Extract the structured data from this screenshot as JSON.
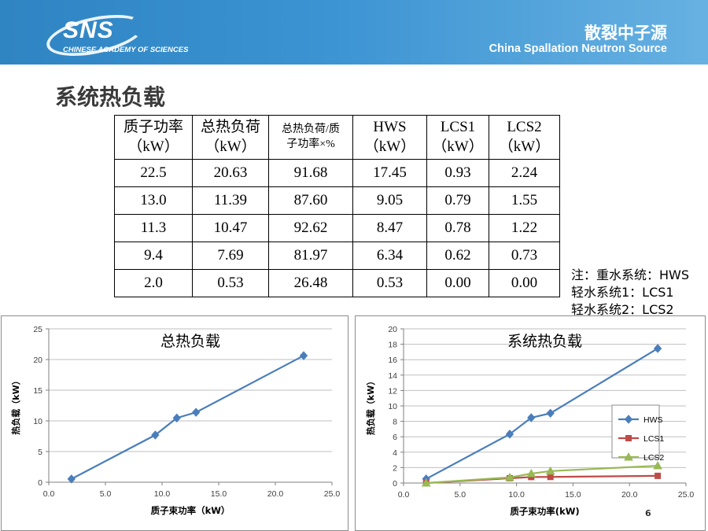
{
  "header": {
    "logo_text": "SNS",
    "logo_subtext": "CHINESE ACADEMY OF SCIENCES",
    "org_cn": "散裂中子源",
    "org_en": "China Spallation Neutron Source"
  },
  "slide_title": "系统热负载",
  "table": {
    "headers": [
      [
        "质子功率",
        "（kW）"
      ],
      [
        "总热负荷",
        "（kW）"
      ],
      [
        "总热负荷/质",
        "子功率×%"
      ],
      [
        "HWS",
        "（kW）"
      ],
      [
        "LCS1",
        "（kW）"
      ],
      [
        "LCS2",
        "（kW）"
      ]
    ],
    "rows": [
      [
        "22.5",
        "20.63",
        "91.68",
        "17.45",
        "0.93",
        "2.24"
      ],
      [
        "13.0",
        "11.39",
        "87.60",
        "9.05",
        "0.79",
        "1.55"
      ],
      [
        "11.3",
        "10.47",
        "92.62",
        "8.47",
        "0.78",
        "1.22"
      ],
      [
        "9.4",
        "7.69",
        "81.97",
        "6.34",
        "0.62",
        "0.73"
      ],
      [
        "2.0",
        "0.53",
        "26.48",
        "0.53",
        "0.00",
        "0.00"
      ]
    ]
  },
  "note": {
    "line1": "注：重水系统：HWS",
    "line2": "轻水系统1：LCS1",
    "line3": "轻水系统2：LCS2"
  },
  "page_number": "6",
  "chart_data": [
    {
      "type": "line",
      "title": "总热负载",
      "xlabel": "质子束功率（kW）",
      "ylabel": "热负载（kW）",
      "xlim": [
        0,
        25
      ],
      "ylim": [
        0,
        25
      ],
      "xticks": [
        "0.0",
        "5.0",
        "10.0",
        "15.0",
        "20.0",
        "25.0"
      ],
      "yticks": [
        "0",
        "5",
        "10",
        "15",
        "20",
        "25"
      ],
      "grid": "horizontal",
      "legend": "none",
      "series": [
        {
          "name": "",
          "color": "#4a7ebb",
          "marker": "diamond",
          "x": [
            2.0,
            9.4,
            11.3,
            13.0,
            22.5
          ],
          "y": [
            0.53,
            7.69,
            10.47,
            11.39,
            20.63
          ]
        }
      ]
    },
    {
      "type": "line",
      "title": "系统热负载",
      "xlabel": "质子束功率(kW)",
      "ylabel": "热负载（kW）",
      "xlim": [
        0,
        25
      ],
      "ylim": [
        0,
        20
      ],
      "xticks": [
        "0.0",
        "5.0",
        "10.0",
        "15.0",
        "20.0",
        "25.0"
      ],
      "yticks": [
        "0",
        "2",
        "4",
        "6",
        "8",
        "10",
        "12",
        "14",
        "16",
        "18",
        "20"
      ],
      "grid": "horizontal",
      "legend": "right",
      "series": [
        {
          "name": "HWS",
          "color": "#4a7ebb",
          "marker": "diamond",
          "x": [
            2.0,
            9.4,
            11.3,
            13.0,
            22.5
          ],
          "y": [
            0.53,
            6.34,
            8.47,
            9.05,
            17.45
          ]
        },
        {
          "name": "LCS1",
          "color": "#be4b48",
          "marker": "square",
          "x": [
            2.0,
            9.4,
            11.3,
            13.0,
            22.5
          ],
          "y": [
            0.0,
            0.62,
            0.78,
            0.79,
            0.93
          ]
        },
        {
          "name": "LCS2",
          "color": "#98b954",
          "marker": "triangle",
          "x": [
            2.0,
            9.4,
            11.3,
            13.0,
            22.5
          ],
          "y": [
            0.0,
            0.73,
            1.22,
            1.55,
            2.24
          ]
        }
      ]
    }
  ]
}
